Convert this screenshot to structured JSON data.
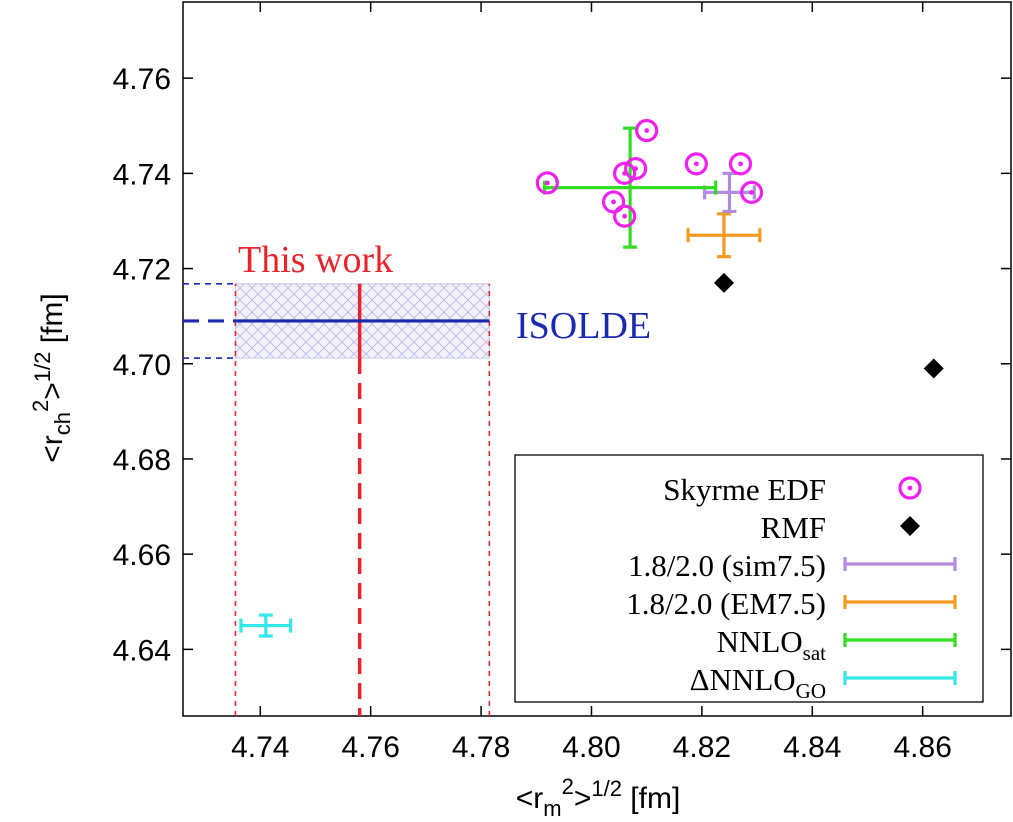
{
  "chart_data": {
    "type": "scatter",
    "xlabel": {
      "prefix": "<r",
      "sub": "m",
      "sup": "2",
      "suffix": ">",
      "power": "1/2",
      "unit": "[fm]"
    },
    "ylabel": {
      "prefix": "<r",
      "sub": "ch",
      "sup": "2",
      "suffix": ">",
      "power": "1/2",
      "unit": "[fm]"
    },
    "xlim": [
      4.726,
      4.876
    ],
    "ylim": [
      4.626,
      4.776
    ],
    "xticks": [
      4.74,
      4.76,
      4.78,
      4.8,
      4.82,
      4.84,
      4.86
    ],
    "yticks": [
      4.64,
      4.66,
      4.68,
      4.7,
      4.72,
      4.74,
      4.76
    ],
    "xtick_labels": [
      "4.74",
      "4.76",
      "4.78",
      "4.80",
      "4.82",
      "4.84",
      "4.86"
    ],
    "ytick_labels": [
      "4.64",
      "4.66",
      "4.68",
      "4.70",
      "4.72",
      "4.74",
      "4.76"
    ],
    "grid": false,
    "legend_position": "bottom-right",
    "colors": {
      "skyrme": "#ee22ee",
      "rmf": "#000000",
      "sim75": "#b08ce0",
      "em75": "#f59a20",
      "nnlo_sat": "#33dd22",
      "dnnlo_go": "#33e8e8",
      "this_work": "#e8242c",
      "isolde": "#1a2ab0"
    },
    "series": [
      {
        "name": "Skyrme EDF",
        "marker": "circle-dot",
        "points": [
          [
            4.792,
            4.738
          ],
          [
            4.804,
            4.734
          ],
          [
            4.806,
            4.731
          ],
          [
            4.806,
            4.74
          ],
          [
            4.808,
            4.741
          ],
          [
            4.81,
            4.749
          ],
          [
            4.819,
            4.742
          ],
          [
            4.827,
            4.742
          ],
          [
            4.829,
            4.736
          ]
        ]
      },
      {
        "name": "RMF",
        "marker": "diamond",
        "points": [
          [
            4.824,
            4.717
          ],
          [
            4.862,
            4.699
          ]
        ]
      },
      {
        "name": "1.8/2.0 (sim7.5)",
        "marker": "errorbar",
        "points": [
          {
            "x": 4.825,
            "y": 4.736,
            "xerr": 4.5,
            "yerr": 4.0,
            "xerr_fm": 0.0045,
            "yerr_fm": 0.004
          }
        ]
      },
      {
        "name": "1.8/2.0 (EM7.5)",
        "marker": "errorbar",
        "points": [
          {
            "x": 4.824,
            "y": 4.727,
            "xerr_fm": 0.0065,
            "yerr_fm": 0.0045
          }
        ]
      },
      {
        "name": "NNLO_sat",
        "marker": "errorbar",
        "points": [
          {
            "x": 4.807,
            "y": 4.737,
            "xerr_fm": 0.0155,
            "yerr_fm": 0.0125
          }
        ]
      },
      {
        "name": "ΔNNLO_GO",
        "marker": "errorbar",
        "points": [
          {
            "x": 4.741,
            "y": 4.645,
            "xerr_fm": 0.0045,
            "yerr_fm": 0.0022
          }
        ]
      }
    ],
    "this_work": {
      "label": "This work",
      "x": 4.758,
      "xmin": 4.7355,
      "xmax": 4.7815
    },
    "isolde": {
      "label": "ISOLDE",
      "y": 4.709,
      "ymin": 4.7012,
      "ymax": 4.7168
    }
  },
  "legend": {
    "items": [
      {
        "key": "skyrme",
        "text": "Skyrme EDF"
      },
      {
        "key": "rmf",
        "text": "RMF"
      },
      {
        "key": "sim75",
        "text": "1.8/2.0 (sim7.5)"
      },
      {
        "key": "em75",
        "text": "1.8/2.0 (EM7.5)"
      },
      {
        "key": "nnlo_sat",
        "text": "NNLO",
        "sub": "sat"
      },
      {
        "key": "dnnlo_go",
        "text": "ΔNNLO",
        "sub": "GO"
      }
    ]
  }
}
